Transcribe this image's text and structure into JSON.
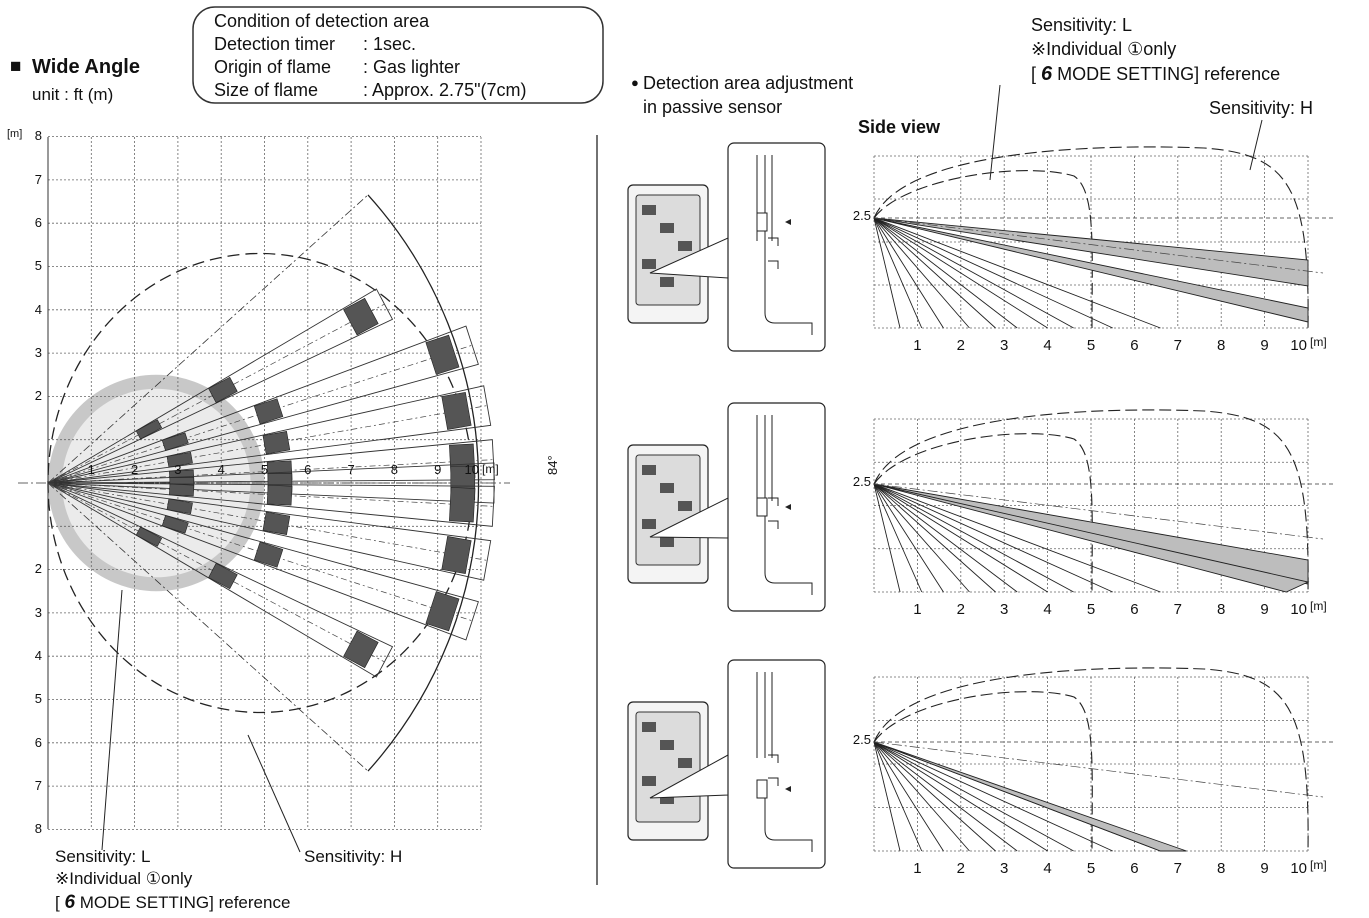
{
  "header": {
    "title_mark": "■",
    "title": "Wide Angle",
    "unit": "unit : ft (m)"
  },
  "conditions": {
    "heading": "Condition of detection area",
    "rows": [
      {
        "label": "Detection timer",
        "value": ": 1sec."
      },
      {
        "label": "Origin of flame",
        "value": ": Gas lighter"
      },
      {
        "label": "Size of flame",
        "value": ": Approx. 2.75\"(7cm)"
      }
    ]
  },
  "top_view": {
    "y_unit": "[m]",
    "y_ticks_upper": [
      "8",
      "7",
      "6",
      "5",
      "4",
      "3",
      "2"
    ],
    "y_ticks_lower": [
      "2",
      "3",
      "4",
      "5",
      "6",
      "7",
      "8"
    ],
    "x_ticks": [
      "1",
      "2",
      "3",
      "4",
      "5",
      "6",
      "7",
      "8",
      "9"
    ],
    "x_end_label": "10",
    "x_unit": "[m]",
    "angle_label": "84°",
    "beam_angles_deg": [
      -28,
      -18,
      -10,
      -3,
      0,
      3,
      10,
      18,
      28
    ],
    "outer_arc_radius_m": 8.8,
    "gray_disc_radius_m": 5,
    "inner_gray_radius_m": 2
  },
  "callouts_left": {
    "sens_l": "Sensitivity: L",
    "individual_prefix": "※Individual ",
    "individual_circle": "①",
    "individual_suffix": "only",
    "ref_bracket_open": "[ ",
    "ref_number": "6",
    "ref_text": " MODE SETTING] reference",
    "sens_h": "Sensitivity: H"
  },
  "right_header": {
    "bullet": "●",
    "line1": "Detection area adjustment",
    "line2": "in passive sensor",
    "side_view": "Side view"
  },
  "callouts_right": {
    "sens_l": "Sensitivity: L",
    "individual_prefix": "※Individual ",
    "individual_circle": "①",
    "individual_suffix": "only",
    "ref_bracket_open": "[ ",
    "ref_number": "6",
    "ref_text": " MODE SETTING] reference",
    "sens_h": "Sensitivity: H"
  },
  "side_views": [
    {
      "y_label": "2.5",
      "x_ticks": [
        "1",
        "2",
        "3",
        "4",
        "5",
        "6",
        "7",
        "8",
        "9",
        "10"
      ],
      "x_unit": "[m]"
    },
    {
      "y_label": "2.5",
      "x_ticks": [
        "1",
        "2",
        "3",
        "4",
        "5",
        "6",
        "7",
        "8",
        "9",
        "10"
      ],
      "x_unit": "[m]"
    },
    {
      "y_label": "2.5",
      "x_ticks": [
        "1",
        "2",
        "3",
        "4",
        "5",
        "6",
        "7",
        "8",
        "9",
        "10"
      ],
      "x_unit": "[m]"
    }
  ],
  "colors": {
    "grid": "#666666",
    "beam_dark": "#555555",
    "beam_light": "#bdbdbd",
    "disc": "#c8c8c8",
    "line": "#222222"
  }
}
